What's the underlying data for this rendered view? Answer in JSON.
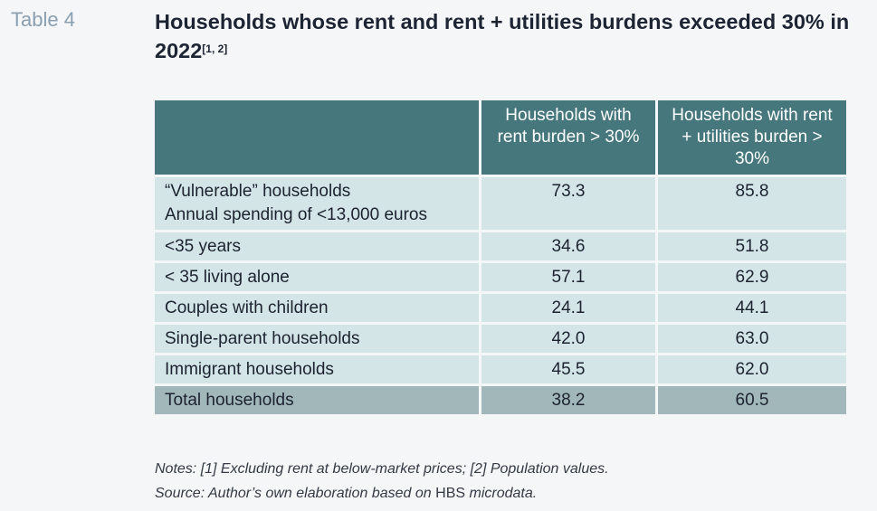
{
  "table_label": "Table 4",
  "title": {
    "text": "Households whose rent and rent + utilities burdens exceeded 30% in 2022",
    "superscript": "[1, 2]"
  },
  "table": {
    "headers": [
      "",
      "Households with rent burden > 30%",
      "Households with rent + utilities burden > 30%"
    ],
    "rows": [
      {
        "label": "“Vulnerable” households",
        "sublabel": "Annual spending of <13,000 euros",
        "rent": "73.3",
        "rent_utilities": "85.8"
      },
      {
        "label": "<35 years",
        "rent": "34.6",
        "rent_utilities": "51.8"
      },
      {
        "label": "< 35 living alone",
        "rent": "57.1",
        "rent_utilities": "62.9"
      },
      {
        "label": "Couples with children",
        "rent": "24.1",
        "rent_utilities": "44.1"
      },
      {
        "label": "Single-parent households",
        "rent": "42.0",
        "rent_utilities": "63.0"
      },
      {
        "label": "Immigrant households",
        "rent": "45.5",
        "rent_utilities": "62.0"
      },
      {
        "label": "Total households",
        "rent": "38.2",
        "rent_utilities": "60.5"
      }
    ]
  },
  "notes": "Notes: [1] Excluding rent at below-market prices; [2] Population values.",
  "source": {
    "prefix": "Source: Author’s own elaboration based on ",
    "highlight": "HBS",
    "suffix": " microdata."
  },
  "colors": {
    "header_bg": "#45777c",
    "row_bg": "#d4e5e7",
    "total_bg": "#a2b7ba",
    "title": "#1d2433",
    "label": "#8a9fb0"
  }
}
